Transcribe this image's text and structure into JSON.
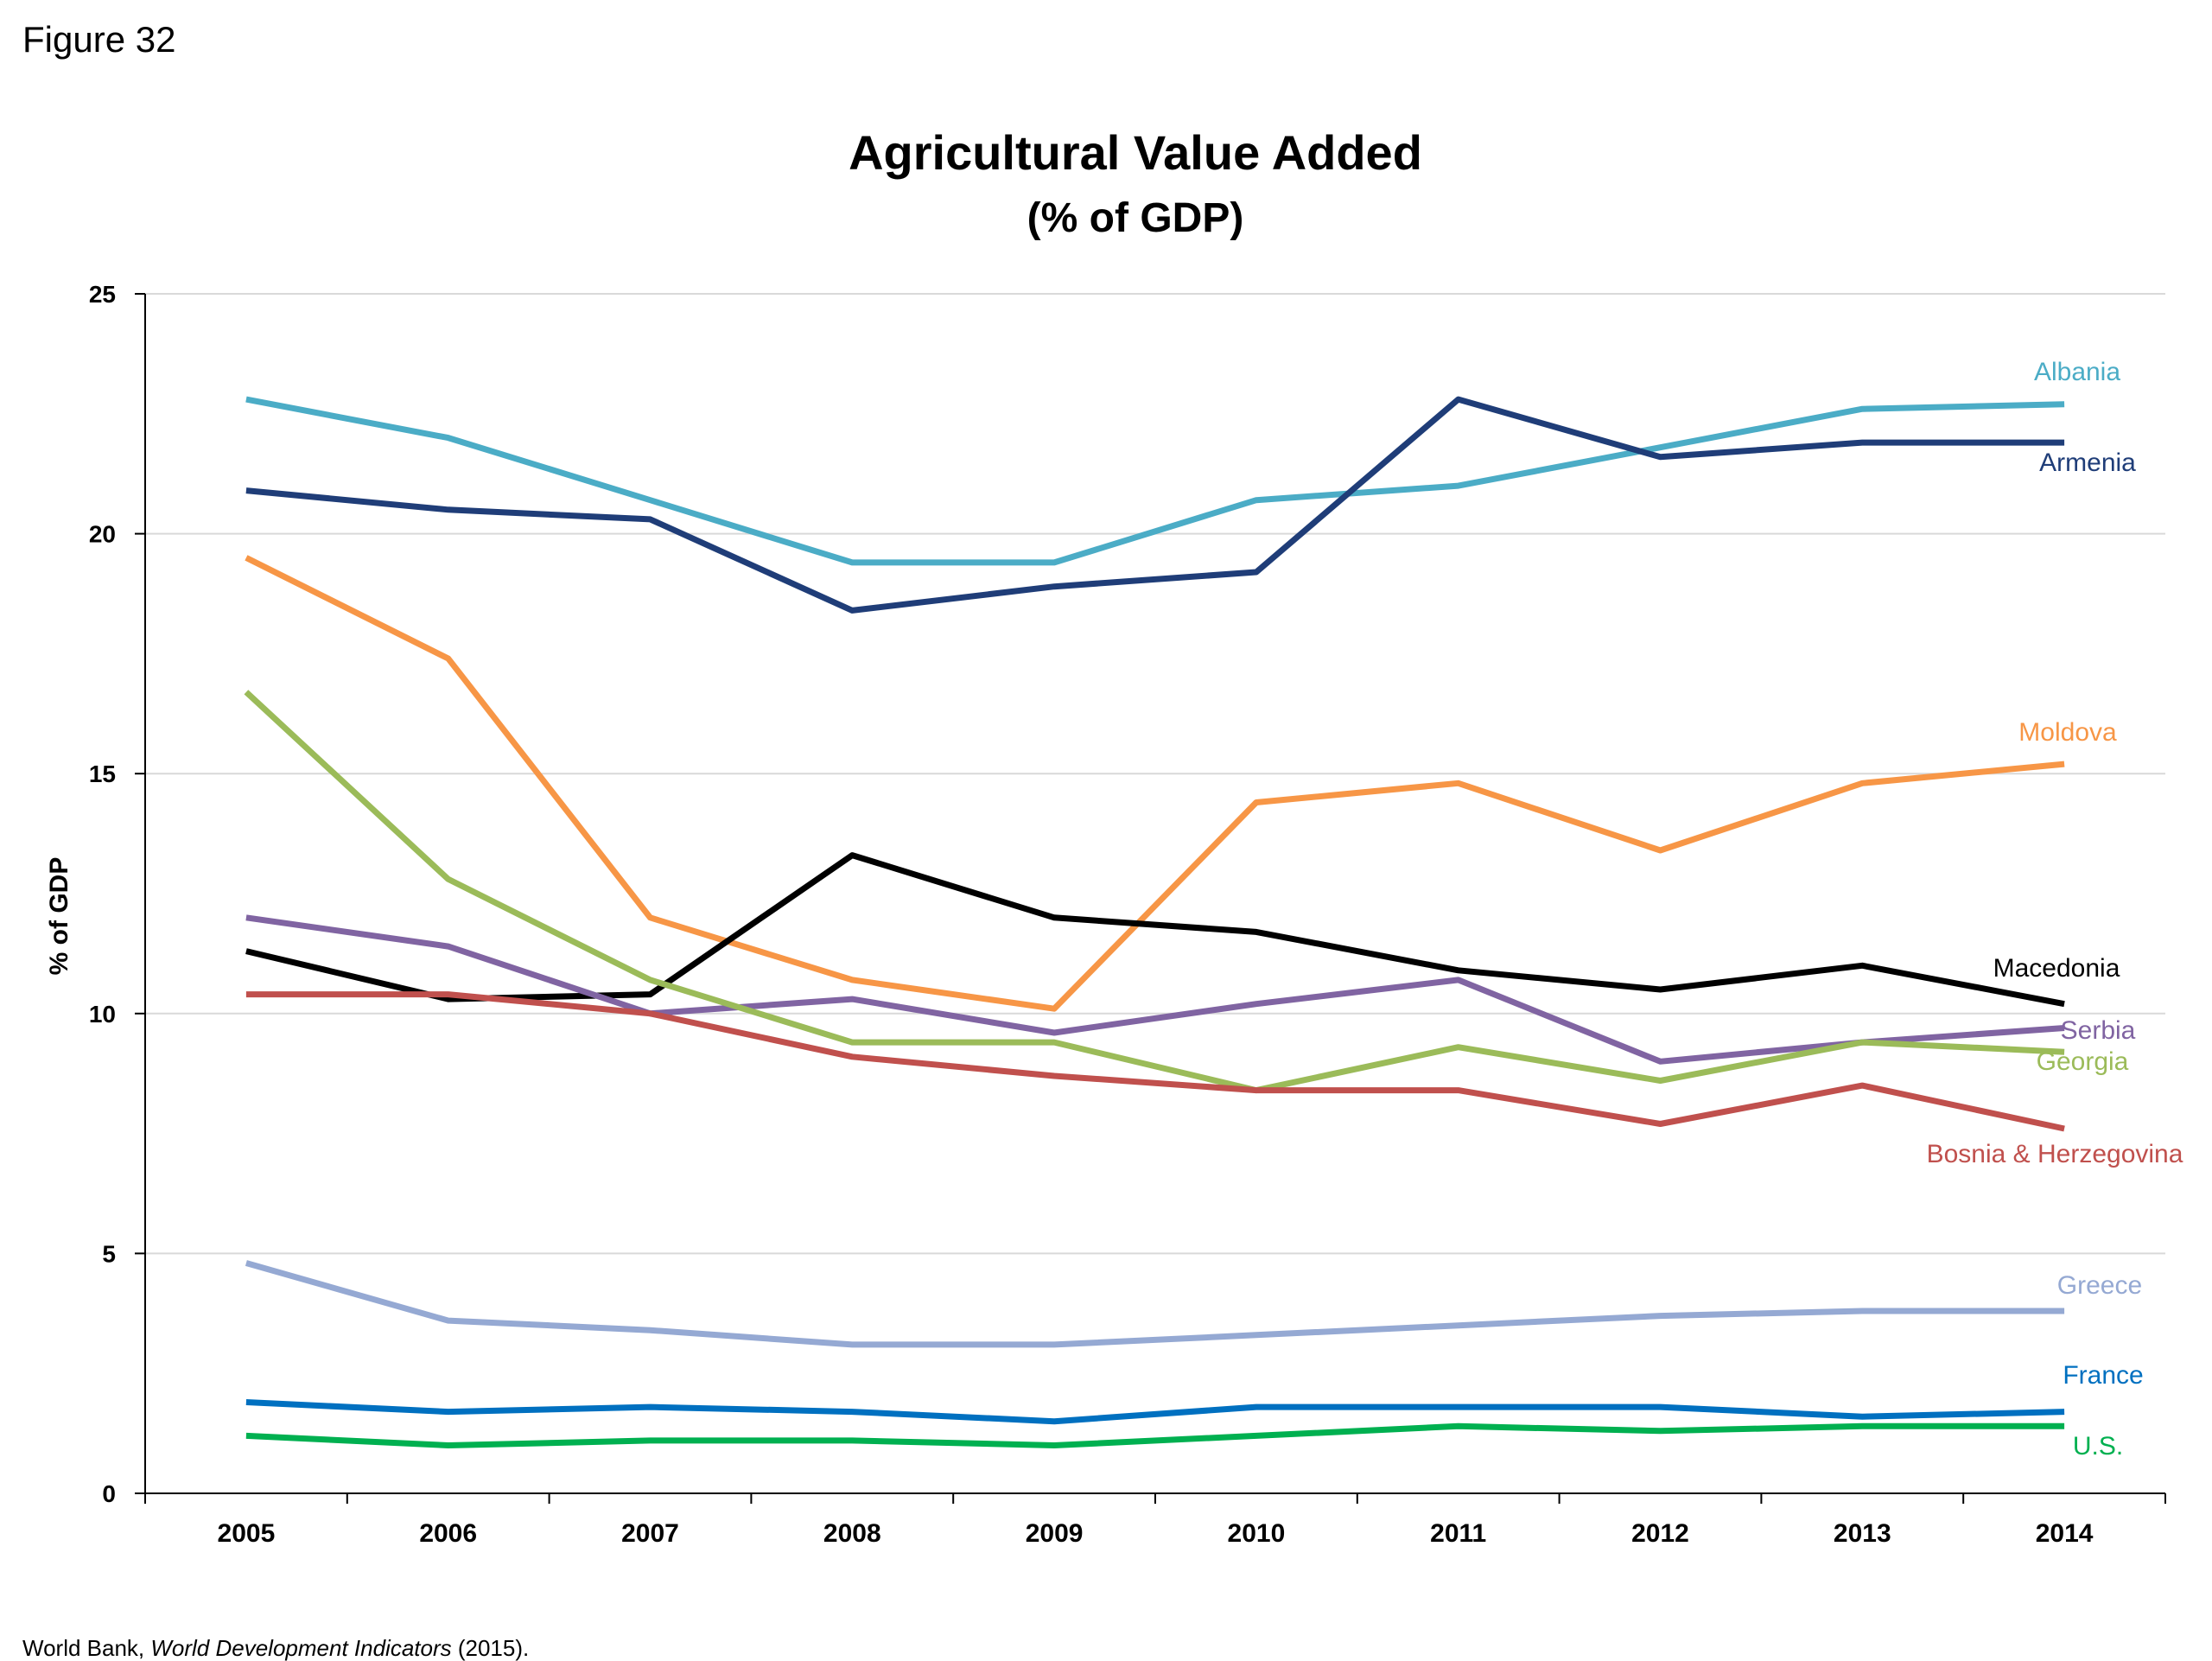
{
  "figure_label": "Figure 32",
  "source": {
    "prefix": "World Bank, ",
    "title": "World Development Indicators",
    "suffix": " (2015)."
  },
  "chart_data": {
    "type": "line",
    "title": "Agricultural Value Added",
    "subtitle": "(% of GDP)",
    "xlabel": "",
    "ylabel": "% of GDP",
    "ylim": [
      0,
      25
    ],
    "yticks": [
      0,
      5,
      10,
      15,
      20,
      25
    ],
    "grid": true,
    "legend": "inline labels at right end of lines",
    "x": [
      "2005",
      "2006",
      "2007",
      "2008",
      "2009",
      "2010",
      "2011",
      "2012",
      "2013",
      "2014"
    ],
    "series": [
      {
        "name": "Albania",
        "color": "#4bacc6",
        "values": [
          22.8,
          22.0,
          20.7,
          19.4,
          19.4,
          20.7,
          21.0,
          21.8,
          22.6,
          22.7
        ]
      },
      {
        "name": "Armenia",
        "color": "#1f3d78",
        "values": [
          20.9,
          20.5,
          20.3,
          18.4,
          18.9,
          19.2,
          22.8,
          21.6,
          21.9,
          21.9
        ]
      },
      {
        "name": "Moldova",
        "color": "#f79646",
        "values": [
          19.5,
          17.4,
          12.0,
          10.7,
          10.1,
          14.4,
          14.8,
          13.4,
          14.8,
          15.2
        ]
      },
      {
        "name": "Macedonia",
        "color": "#000000",
        "values": [
          11.3,
          10.3,
          10.4,
          13.3,
          12.0,
          11.7,
          10.9,
          10.5,
          11.0,
          10.2
        ]
      },
      {
        "name": "Serbia",
        "color": "#8064a2",
        "values": [
          12.0,
          11.4,
          10.0,
          10.3,
          9.6,
          10.2,
          10.7,
          9.0,
          9.4,
          9.7
        ]
      },
      {
        "name": "Georgia",
        "color": "#9bbb59",
        "values": [
          16.7,
          12.8,
          10.7,
          9.4,
          9.4,
          8.4,
          9.3,
          8.6,
          9.4,
          9.2
        ]
      },
      {
        "name": "Bosnia & Herzegovina",
        "color": "#c0504d",
        "values": [
          10.4,
          10.4,
          10.0,
          9.1,
          8.7,
          8.4,
          8.4,
          7.7,
          8.5,
          7.6
        ]
      },
      {
        "name": "Greece",
        "color": "#95a9d3",
        "values": [
          4.8,
          3.6,
          3.4,
          3.1,
          3.1,
          3.3,
          3.5,
          3.7,
          3.8,
          3.8
        ]
      },
      {
        "name": "France",
        "color": "#0070c0",
        "values": [
          1.9,
          1.7,
          1.8,
          1.7,
          1.5,
          1.8,
          1.8,
          1.8,
          1.6,
          1.7
        ]
      },
      {
        "name": "U.S.",
        "color": "#00b050",
        "values": [
          1.2,
          1.0,
          1.1,
          1.1,
          1.0,
          1.2,
          1.4,
          1.3,
          1.4,
          1.4
        ]
      }
    ]
  }
}
